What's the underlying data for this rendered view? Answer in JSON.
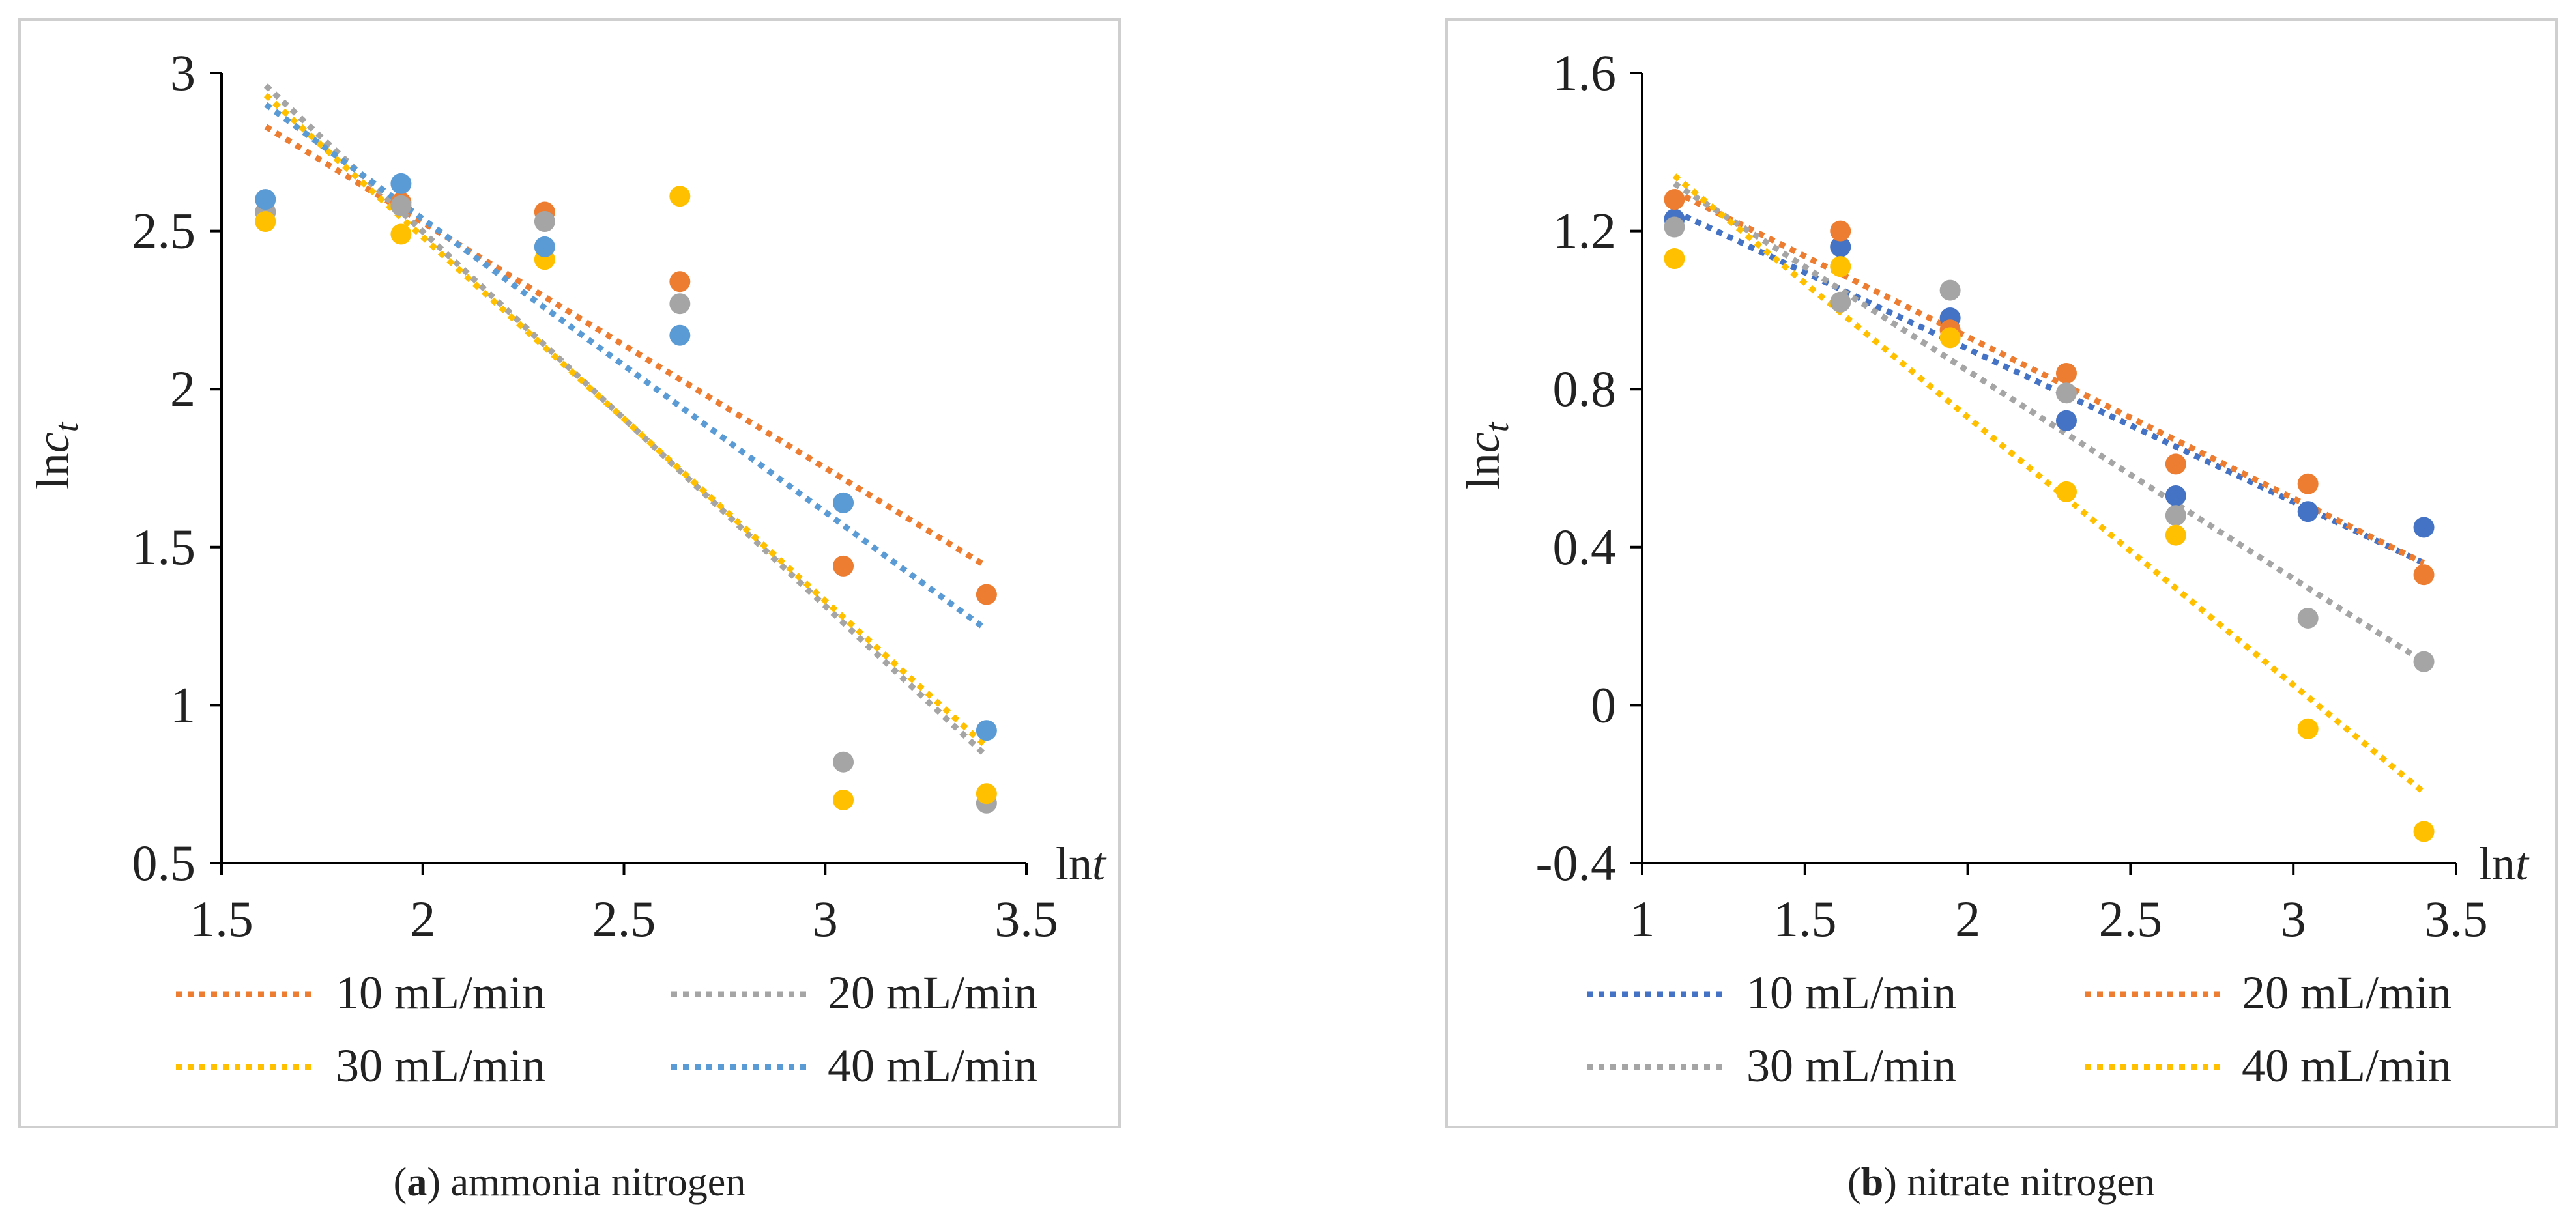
{
  "chart_data": [
    {
      "type": "scatter",
      "title": "",
      "caption_letter": "a",
      "caption_text": "ammonia nitrogen",
      "xlabel_prefix": "ln",
      "xlabel_var": "t",
      "ylabel_prefix": "ln",
      "ylabel_var": "c",
      "ylabel_sub": "t",
      "xlim": [
        1.5,
        3.5
      ],
      "ylim": [
        0.5,
        3.0
      ],
      "xticks": [
        1.5,
        2.0,
        2.5,
        3.0,
        3.5
      ],
      "xtick_labels": [
        "1.5",
        "2",
        "2.5",
        "3",
        "3.5"
      ],
      "yticks": [
        0.5,
        1.0,
        1.5,
        2.0,
        2.5,
        3.0
      ],
      "ytick_labels": [
        "0.5",
        "1",
        "1.5",
        "2",
        "2.5",
        "3"
      ],
      "x": [
        1.609,
        1.946,
        2.303,
        2.639,
        3.045,
        3.401
      ],
      "grid": false,
      "legend_position": "bottom",
      "series": [
        {
          "name": "10 mL/min",
          "color": "#ED7D31",
          "values": [
            2.56,
            2.59,
            2.56,
            2.34,
            1.44,
            1.35
          ],
          "trend": [
            1.61,
            2.83,
            3.4,
            1.44
          ]
        },
        {
          "name": "20 mL/min",
          "color": "#A5A5A5",
          "values": [
            2.56,
            2.58,
            2.53,
            2.27,
            0.82,
            0.69
          ],
          "trend": [
            1.61,
            2.96,
            3.4,
            0.84
          ]
        },
        {
          "name": "30 mL/min",
          "color": "#FFC000",
          "values": [
            2.53,
            2.49,
            2.41,
            2.61,
            0.7,
            0.72
          ],
          "trend": [
            1.61,
            2.93,
            3.4,
            0.87
          ]
        },
        {
          "name": "40 mL/min",
          "color": "#5B9BD5",
          "values": [
            2.6,
            2.65,
            2.45,
            2.17,
            1.64,
            0.92
          ],
          "trend": [
            1.61,
            2.9,
            3.4,
            1.24
          ]
        }
      ]
    },
    {
      "type": "scatter",
      "title": "",
      "caption_letter": "b",
      "caption_text": "nitrate nitrogen",
      "xlabel_prefix": "ln",
      "xlabel_var": "t",
      "ylabel_prefix": "ln",
      "ylabel_var": "c",
      "ylabel_sub": "t",
      "xlim": [
        1.0,
        3.5
      ],
      "ylim": [
        -0.4,
        1.6
      ],
      "xticks": [
        1.0,
        1.5,
        2.0,
        2.5,
        3.0,
        3.5
      ],
      "xtick_labels": [
        "1",
        "1.5",
        "2",
        "2.5",
        "3",
        "3.5"
      ],
      "yticks": [
        -0.4,
        0.0,
        0.4,
        0.8,
        1.2,
        1.6
      ],
      "ytick_labels": [
        "-0.4",
        "0",
        "0.4",
        "0.8",
        "1.2",
        "1.6"
      ],
      "x": [
        1.099,
        1.609,
        1.946,
        2.303,
        2.639,
        3.045,
        3.401
      ],
      "grid": false,
      "legend_position": "bottom",
      "series": [
        {
          "name": "10 mL/min",
          "color": "#4472C4",
          "values": [
            1.23,
            1.16,
            0.98,
            0.72,
            0.53,
            0.49,
            0.45
          ],
          "trend": [
            1.099,
            1.25,
            3.4,
            0.36
          ]
        },
        {
          "name": "20 mL/min",
          "color": "#ED7D31",
          "values": [
            1.28,
            1.2,
            0.95,
            0.84,
            0.61,
            0.56,
            0.33
          ],
          "trend": [
            1.099,
            1.3,
            3.4,
            0.36
          ]
        },
        {
          "name": "30 mL/min",
          "color": "#A5A5A5",
          "values": [
            1.21,
            1.02,
            1.05,
            0.79,
            0.48,
            0.22,
            0.11
          ],
          "trend": [
            1.099,
            1.32,
            3.4,
            0.11
          ]
        },
        {
          "name": "40 mL/min",
          "color": "#FFC000",
          "values": [
            1.13,
            1.11,
            0.93,
            0.54,
            0.43,
            -0.06,
            -0.32
          ],
          "trend": [
            1.099,
            1.34,
            3.4,
            -0.22
          ]
        }
      ]
    }
  ]
}
